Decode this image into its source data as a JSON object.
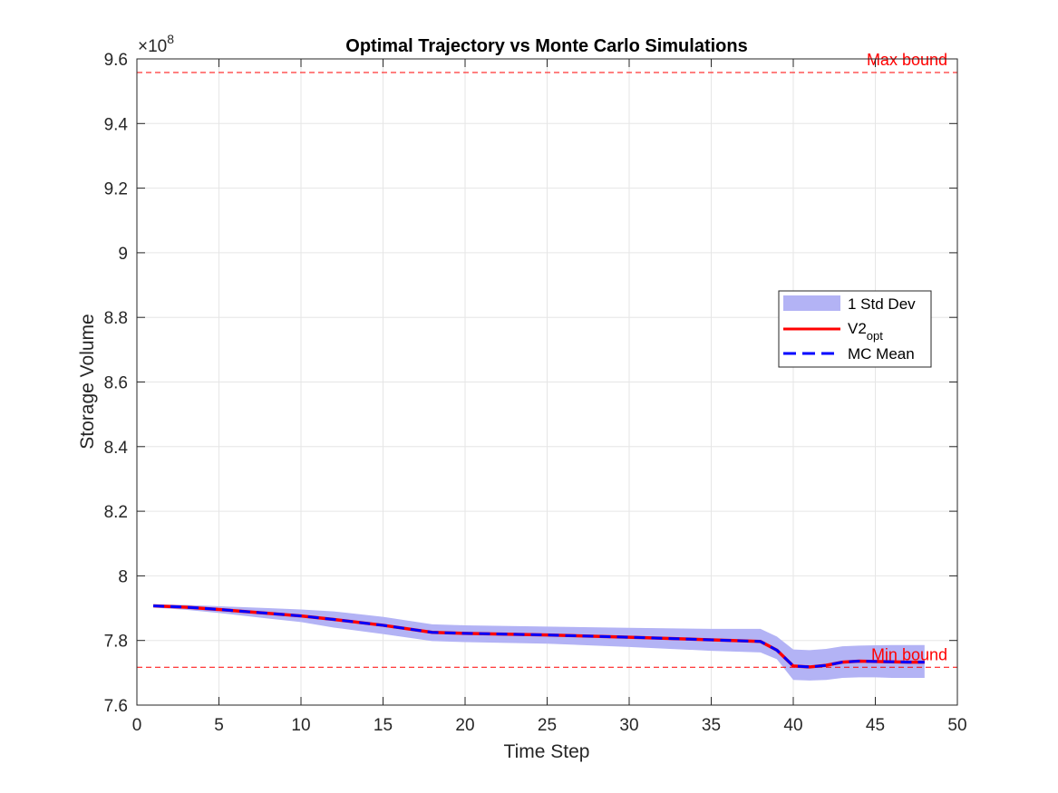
{
  "chart_data": {
    "type": "line",
    "title": "Optimal Trajectory vs Monte Carlo Simulations",
    "xlabel": "Time Step",
    "ylabel": "Storage Volume",
    "y_exponent_label": "×10",
    "y_exponent_power": "8",
    "scale_factor": 100000000,
    "xlim": [
      0,
      50
    ],
    "ylim": [
      7.6,
      9.6
    ],
    "x_ticks": [
      0,
      5,
      10,
      15,
      20,
      25,
      30,
      35,
      40,
      45,
      50
    ],
    "x_tick_labels": [
      "0",
      "5",
      "10",
      "15",
      "20",
      "25",
      "30",
      "35",
      "40",
      "45",
      "50"
    ],
    "y_ticks": [
      7.6,
      7.8,
      8.0,
      8.2,
      8.4,
      8.6,
      8.8,
      9.0,
      9.2,
      9.4,
      9.6
    ],
    "y_tick_labels": [
      "7.6",
      "7.8",
      "8",
      "8.2",
      "8.4",
      "8.6",
      "8.8",
      "9",
      "9.2",
      "9.4",
      "9.6"
    ],
    "grid": true,
    "legend_position": "center-right",
    "colors": {
      "band": "#b3b3f5",
      "optimal": "#ff0000",
      "mean": "#0000ff",
      "bounds": "#ff0000"
    },
    "reference_lines": [
      {
        "label": "Max bound",
        "y": 9.558
      },
      {
        "label": "Min bound",
        "y": 7.717
      }
    ],
    "series": [
      {
        "name": "1 Std Dev",
        "kind": "band",
        "x": [
          1,
          3,
          5,
          8,
          10,
          12,
          15,
          18,
          20,
          25,
          30,
          35,
          38,
          39,
          40,
          41,
          42,
          43,
          44,
          45,
          46,
          47,
          48
        ],
        "upper": [
          7.912,
          7.91,
          7.906,
          7.9,
          7.896,
          7.89,
          7.873,
          7.85,
          7.847,
          7.843,
          7.839,
          7.836,
          7.836,
          7.812,
          7.772,
          7.77,
          7.774,
          7.782,
          7.784,
          7.785,
          7.786,
          7.786,
          7.786
        ],
        "lower": [
          7.902,
          7.895,
          7.885,
          7.868,
          7.857,
          7.84,
          7.82,
          7.798,
          7.795,
          7.79,
          7.78,
          7.768,
          7.763,
          7.742,
          7.678,
          7.676,
          7.678,
          7.684,
          7.686,
          7.686,
          7.684,
          7.684,
          7.684
        ]
      },
      {
        "name": "V2_opt",
        "name_main": "V2",
        "name_sub": "opt",
        "kind": "line",
        "x": [
          1,
          3,
          5,
          8,
          10,
          12,
          15,
          18,
          20,
          25,
          30,
          35,
          38,
          39,
          40,
          41,
          42,
          43,
          44,
          45,
          46,
          47,
          48
        ],
        "values": [
          7.907,
          7.903,
          7.896,
          7.884,
          7.876,
          7.865,
          7.847,
          7.825,
          7.822,
          7.817,
          7.81,
          7.802,
          7.797,
          7.77,
          7.721,
          7.718,
          7.723,
          7.733,
          7.736,
          7.735,
          7.734,
          7.733,
          7.733
        ]
      },
      {
        "name": "MC Mean",
        "kind": "dashed-line",
        "x": [
          1,
          3,
          5,
          8,
          10,
          12,
          15,
          18,
          20,
          25,
          30,
          35,
          38,
          39,
          40,
          41,
          42,
          43,
          44,
          45,
          46,
          47,
          48
        ],
        "values": [
          7.907,
          7.903,
          7.896,
          7.884,
          7.876,
          7.865,
          7.847,
          7.825,
          7.822,
          7.817,
          7.81,
          7.802,
          7.797,
          7.77,
          7.721,
          7.718,
          7.723,
          7.733,
          7.736,
          7.735,
          7.734,
          7.733,
          7.733
        ]
      }
    ]
  }
}
